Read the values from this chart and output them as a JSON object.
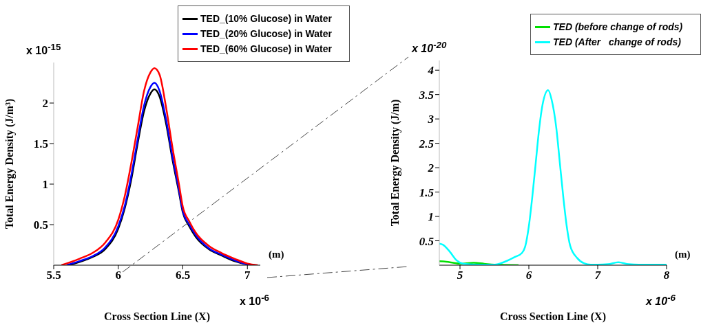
{
  "chart_data": [
    {
      "type": "line",
      "xlabel": "Cross Section Line (X)",
      "ylabel": "Total Energy Density (J/m³)",
      "xlim": [
        5.5,
        7.1
      ],
      "xticks": [
        5.5,
        6,
        6.5,
        7
      ],
      "ylim": [
        0,
        2.5
      ],
      "yticks": [
        {
          "value": 0.5,
          "label": "0.5"
        },
        {
          "value": 1,
          "label": "1"
        },
        {
          "value": 1.5,
          "label": "1.5"
        },
        {
          "value": 2,
          "label": "2"
        }
      ],
      "legend": "top right",
      "annotations": [
        "x 10$^{-15}$",
        "x 10$^{-6}$",
        "(m)"
      ],
      "series": [
        {
          "name": "TED_(10% Glucose) in Water",
          "color": "#000000",
          "x": [
            5.62,
            5.7,
            5.8,
            5.9,
            6.0,
            6.05,
            6.1,
            6.15,
            6.2,
            6.25,
            6.28,
            6.32,
            6.37,
            6.42,
            6.47,
            6.5,
            6.55,
            6.6,
            6.7,
            6.8,
            6.9,
            7.0,
            7.05
          ],
          "values": [
            0,
            0.04,
            0.1,
            0.2,
            0.45,
            0.7,
            1.05,
            1.5,
            1.9,
            2.12,
            2.17,
            2.08,
            1.75,
            1.3,
            0.9,
            0.65,
            0.48,
            0.35,
            0.2,
            0.12,
            0.05,
            0.01,
            0
          ]
        },
        {
          "name": "TED_(20% Glucose) in Water",
          "color": "#0000ff",
          "x": [
            5.6,
            5.7,
            5.8,
            5.9,
            6.0,
            6.05,
            6.1,
            6.15,
            6.2,
            6.25,
            6.28,
            6.32,
            6.37,
            6.42,
            6.47,
            6.5,
            6.55,
            6.6,
            6.7,
            6.8,
            6.9,
            7.0,
            7.06
          ],
          "values": [
            0,
            0.05,
            0.11,
            0.22,
            0.48,
            0.73,
            1.1,
            1.55,
            1.97,
            2.2,
            2.25,
            2.15,
            1.8,
            1.34,
            0.93,
            0.67,
            0.5,
            0.37,
            0.21,
            0.13,
            0.06,
            0.01,
            0
          ]
        },
        {
          "name": "TED_(60% Glucose) in Water",
          "color": "#ff0000",
          "x": [
            5.56,
            5.7,
            5.8,
            5.9,
            6.0,
            6.05,
            6.1,
            6.15,
            6.2,
            6.25,
            6.28,
            6.32,
            6.37,
            6.42,
            6.47,
            6.5,
            6.55,
            6.6,
            6.7,
            6.8,
            6.9,
            7.0,
            7.08
          ],
          "values": [
            0,
            0.08,
            0.15,
            0.28,
            0.56,
            0.85,
            1.25,
            1.7,
            2.15,
            2.38,
            2.43,
            2.35,
            1.95,
            1.45,
            1.0,
            0.72,
            0.54,
            0.4,
            0.24,
            0.15,
            0.08,
            0.02,
            0
          ]
        }
      ]
    },
    {
      "type": "line",
      "xlabel": "Cross Section Line (X)",
      "ylabel": "Total Energy Density (J/m)",
      "xlim": [
        4.7,
        8
      ],
      "xticks": [
        5,
        6,
        7,
        8
      ],
      "ylim": [
        0,
        4.2
      ],
      "yticks": [
        {
          "value": 0.5,
          "label": "0.5"
        },
        {
          "value": 1,
          "label": "1"
        },
        {
          "value": 1.5,
          "label": "1.5"
        },
        {
          "value": 2,
          "label": "2"
        },
        {
          "value": 2.5,
          "label": "2.5"
        },
        {
          "value": 3,
          "label": "3"
        },
        {
          "value": 3.5,
          "label": "3.5"
        },
        {
          "value": 4,
          "label": "4"
        }
      ],
      "legend": "top right",
      "annotations": [
        "x 10$^{-20}$",
        "x 10$^{-6}$",
        "(m)"
      ],
      "series": [
        {
          "name": "TED (before change of rods)",
          "color": "#00e000",
          "x": [
            4.7,
            4.8,
            4.9,
            5.0,
            5.2,
            5.35,
            5.5,
            5.85
          ],
          "values": [
            0.08,
            0.07,
            0.05,
            0.03,
            0.05,
            0.03,
            0.01,
            0
          ]
        },
        {
          "name": "TED (After   change of rods)",
          "color": "#00ffff",
          "x": [
            4.7,
            4.75,
            4.85,
            4.95,
            5.05,
            5.3,
            5.5,
            5.65,
            5.8,
            5.9,
            5.95,
            6.0,
            6.05,
            6.1,
            6.15,
            6.2,
            6.28,
            6.33,
            6.4,
            6.45,
            6.5,
            6.55,
            6.6,
            6.7,
            6.8,
            6.9,
            7.0,
            7.15,
            7.3,
            7.45,
            7.6,
            8.0
          ],
          "values": [
            0.44,
            0.42,
            0.28,
            0.1,
            0.03,
            0.01,
            0.01,
            0.07,
            0.17,
            0.25,
            0.4,
            0.8,
            1.4,
            2.1,
            2.8,
            3.3,
            3.59,
            3.4,
            2.8,
            2.1,
            1.4,
            0.8,
            0.4,
            0.15,
            0.04,
            0.01,
            0.01,
            0.02,
            0.06,
            0.02,
            0.01,
            0.01
          ]
        }
      ]
    }
  ]
}
